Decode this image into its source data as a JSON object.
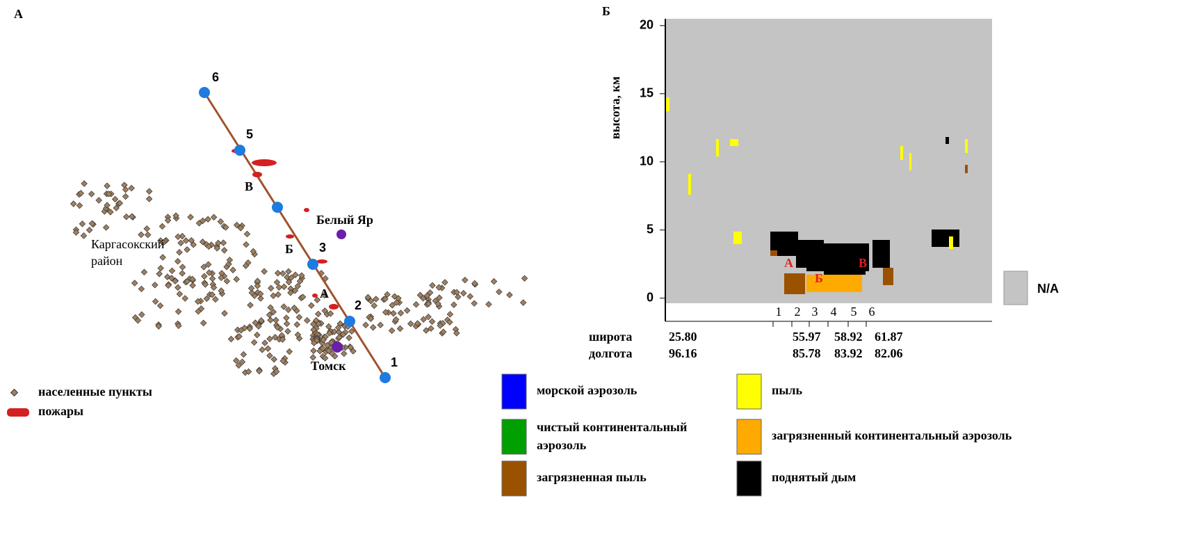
{
  "panel_a": {
    "label": "А",
    "track_points": [
      "6",
      "5",
      "3",
      "2",
      "1"
    ],
    "fire_labels": [
      "В",
      "Б",
      "А"
    ],
    "places": {
      "belyi_yar": "Белый Яр",
      "tomsk": "Томск",
      "district": [
        "Каргасокский",
        "район"
      ]
    },
    "legend": [
      "населенные пункты",
      "пожары"
    ]
  },
  "panel_b": {
    "label": "Б",
    "chart": {
      "ylabel": "высота, км",
      "ylim": [
        -1.7,
        20.5
      ],
      "yticks": [
        0,
        5,
        10,
        15,
        20
      ],
      "segment_ticks": [
        "1",
        "2",
        "3",
        "4",
        "5",
        "6"
      ],
      "row_labels": [
        "широта",
        "долгота"
      ],
      "lat": [
        "25.80",
        "55.97",
        "58.92",
        "61.87"
      ],
      "lon": [
        "96.16",
        "85.78",
        "83.92",
        "82.06"
      ],
      "layer_labels": [
        "А",
        "Б",
        "В"
      ],
      "na": "N/A"
    },
    "legend": [
      {
        "name": "морской  аэрозоль",
        "color": "#0000ff"
      },
      {
        "name": "чистый континентальный аэрозоль",
        "color": "#00a000"
      },
      {
        "name": "загрязненная пыль",
        "color": "#9a5200"
      },
      {
        "name": "пыль",
        "color": "#ffff00"
      },
      {
        "name": "загрязненный континентальный аэрозоль",
        "color": "#ffaa00"
      },
      {
        "name": "поднятый дым",
        "color": "#000000"
      }
    ]
  }
}
